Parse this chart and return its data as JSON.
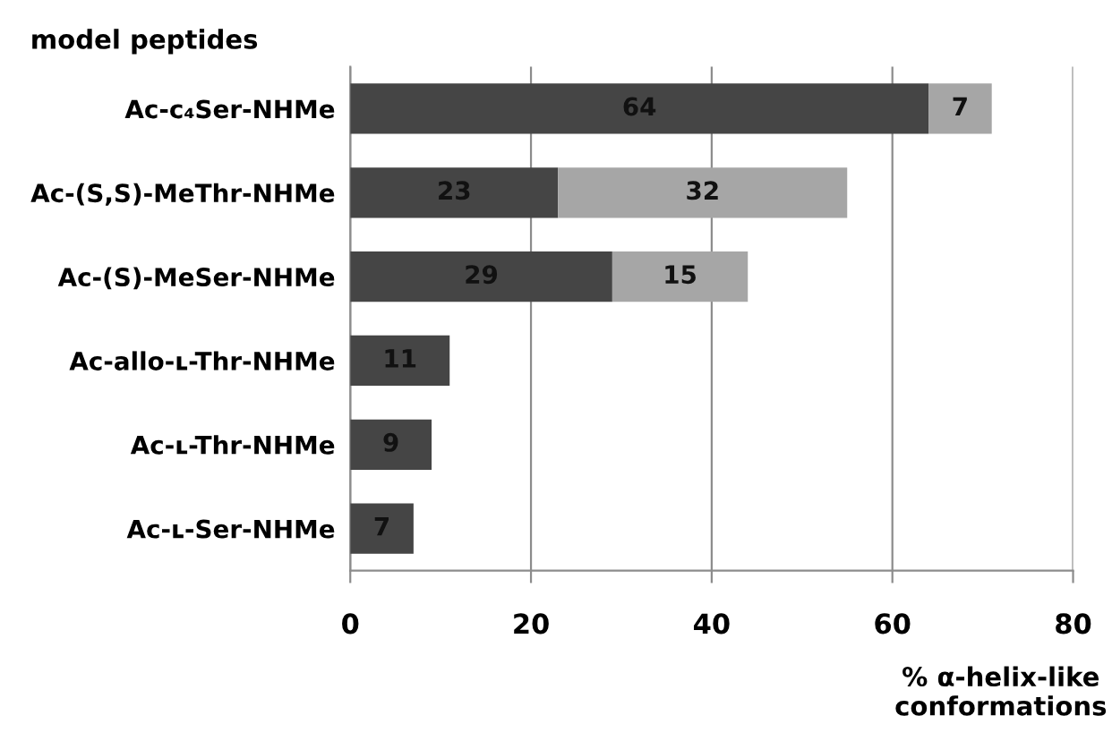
{
  "chart_data": {
    "type": "bar",
    "orientation": "horizontal",
    "stacked": true,
    "ylabel": "model peptides",
    "xlabel": "% α-helix-like\nconformations",
    "categories": [
      "Ac-c₄Ser-NHMe",
      "Ac-(S,S)-MeThr-NHMe",
      "Ac-(S)-MeSer-NHMe",
      "Ac-allo-ʟ-Thr-NHMe",
      "Ac-ʟ-Thr-NHMe",
      "Ac-ʟ-Ser-NHMe"
    ],
    "series": [
      {
        "color": "#454545",
        "values": [
          64,
          23,
          29,
          11,
          9,
          7
        ]
      },
      {
        "color": "#a6a6a6",
        "values": [
          7,
          32,
          15,
          null,
          null,
          null
        ]
      }
    ],
    "xlim": [
      0,
      80
    ],
    "xticks": [
      0,
      20,
      40,
      60,
      80
    ],
    "grid": "x",
    "data_labels": true
  }
}
